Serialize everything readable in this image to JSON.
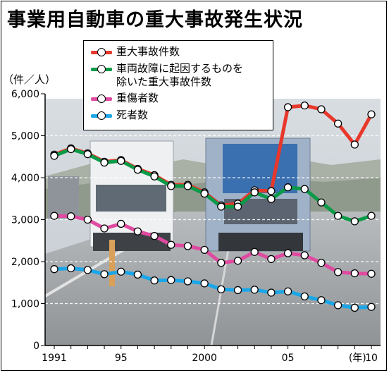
{
  "title": "事業用自動車の重大事故発生状況",
  "unit_label": "（件／人）",
  "chart_data": {
    "type": "line",
    "title": "事業用自動車の重大事故発生状況",
    "xlabel": "",
    "ylabel": "（件／人）",
    "ylim": [
      0,
      6000
    ],
    "y_ticks": [
      0,
      1000,
      2000,
      3000,
      4000,
      5000,
      6000
    ],
    "y_tick_labels": [
      "0",
      "1,000",
      "2,000",
      "3,000",
      "4,000",
      "5,000",
      "6,000"
    ],
    "x": [
      1991,
      1992,
      1993,
      1994,
      1995,
      1996,
      1997,
      1998,
      1999,
      2000,
      2001,
      2002,
      2003,
      2004,
      2005,
      2006,
      2007,
      2008,
      2009,
      2010
    ],
    "x_tick_labels": [
      {
        "x": 1991,
        "label": "1991"
      },
      {
        "x": 1995,
        "label": "95"
      },
      {
        "x": 2000,
        "label": "2000"
      },
      {
        "x": 2005,
        "label": "05"
      },
      {
        "x": 2009,
        "label": "(年)"
      },
      {
        "x": 2010,
        "label": "10"
      }
    ],
    "grid": true,
    "series": [
      {
        "name": "重大事故件数",
        "color": "#e8372b",
        "values": [
          4550,
          4700,
          4580,
          4380,
          4420,
          4210,
          4060,
          3830,
          3830,
          3650,
          3340,
          3380,
          3700,
          3680,
          5680,
          5720,
          5630,
          5290,
          4790,
          5510
        ]
      },
      {
        "name": "車両故障に起因するものを\n除いた重大事故件数",
        "color": "#0a9a48",
        "values": [
          4520,
          4680,
          4560,
          4360,
          4400,
          4190,
          4030,
          3800,
          3800,
          3620,
          3310,
          3310,
          3650,
          3490,
          3770,
          3730,
          3410,
          3090,
          2960,
          3090
        ]
      },
      {
        "name": "重傷者数",
        "color": "#e04aa0",
        "values": [
          3090,
          3080,
          3000,
          2790,
          2900,
          2720,
          2610,
          2400,
          2370,
          2280,
          1970,
          2020,
          2230,
          2060,
          2200,
          2150,
          1970,
          1750,
          1720,
          1710
        ]
      },
      {
        "name": "死者数",
        "color": "#1aa6e8",
        "values": [
          1820,
          1840,
          1800,
          1700,
          1760,
          1690,
          1550,
          1560,
          1530,
          1480,
          1340,
          1320,
          1330,
          1260,
          1290,
          1170,
          1080,
          960,
          900,
          920
        ]
      }
    ],
    "legend_position": "top-left"
  }
}
